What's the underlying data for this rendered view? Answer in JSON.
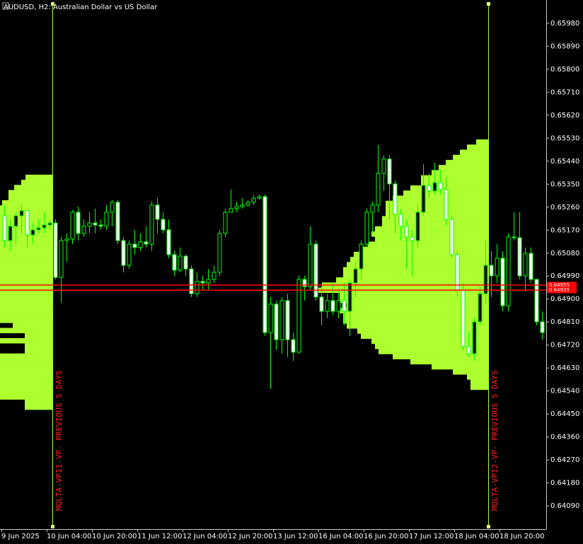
{
  "chart_data": {
    "type": "candlestick",
    "title": "AUDUSD, H2:  Australian Dollar vs US Dollar",
    "open": [
      0.65226,
      0.65129,
      0.65185,
      0.65226,
      0.65246,
      0.65151,
      0.65171,
      0.65179,
      0.6519,
      0.65198,
      0.64985,
      0.65129,
      0.65135,
      0.6524,
      0.65157,
      0.65185,
      0.65198,
      0.6519,
      0.65185,
      0.6524,
      0.65279,
      0.65129,
      0.65032,
      0.65115,
      0.65102,
      0.65124,
      0.65115,
      0.65268,
      0.65212,
      0.65171,
      0.65074,
      0.65013,
      0.65068,
      0.65018,
      0.64921,
      0.64969,
      0.64963,
      0.64977,
      0.65005,
      0.65157,
      0.6524,
      0.65254,
      0.65262,
      0.65268,
      0.65279,
      0.65295,
      0.65301,
      0.64769,
      0.6488,
      0.64741,
      0.64894,
      0.64741,
      0.64692,
      0.64977,
      0.64949,
      0.65115,
      0.64908,
      0.64852,
      0.64894,
      0.64852,
      0.64894,
      0.64852,
      0.64963,
      0.65018,
      0.65115,
      0.6524,
      0.65268,
      0.65392,
      0.65448,
      0.65351,
      0.65232,
      0.65185,
      0.65143,
      0.65129,
      0.6524,
      0.65345,
      0.65323,
      0.65356,
      0.65329,
      0.65212,
      0.65074,
      0.64935,
      0.64714,
      0.64686,
      0.64811,
      0.64921,
      0.65032,
      0.64991,
      0.6506,
      0.64874,
      0.65143,
      0.6514,
      0.64991,
      0.65079,
      0.64977,
      0.64811
    ],
    "high": [
      0.65268,
      0.65212,
      0.6524,
      0.65268,
      0.65251,
      0.65198,
      0.65212,
      0.6524,
      0.65207,
      0.65212,
      0.65143,
      0.65157,
      0.65248,
      0.65262,
      0.65212,
      0.6524,
      0.65254,
      0.65212,
      0.65268,
      0.65287,
      0.65287,
      0.65143,
      0.65129,
      0.65171,
      0.65157,
      0.65185,
      0.65282,
      0.65295,
      0.6524,
      0.65212,
      0.65088,
      0.65102,
      0.65074,
      0.65032,
      0.65005,
      0.64991,
      0.65018,
      0.65032,
      0.65171,
      0.65254,
      0.65329,
      0.65282,
      0.65295,
      0.65287,
      0.65307,
      0.65309,
      0.65309,
      0.64908,
      0.64894,
      0.64908,
      0.64921,
      0.64769,
      0.64991,
      0.64991,
      0.65185,
      0.65129,
      0.64949,
      0.64921,
      0.64963,
      0.64935,
      0.64963,
      0.64977,
      0.65046,
      0.65129,
      0.65254,
      0.65282,
      0.65503,
      0.65462,
      0.65462,
      0.65365,
      0.65254,
      0.65212,
      0.65171,
      0.65268,
      0.65428,
      0.65392,
      0.65434,
      0.65406,
      0.65379,
      0.65226,
      0.65088,
      0.64963,
      0.64769,
      0.64825,
      0.64949,
      0.65129,
      0.65088,
      0.65115,
      0.65088,
      0.65157,
      0.6524,
      0.6524,
      0.65102,
      0.65102,
      0.64977,
      0.64852
    ],
    "low": [
      0.65102,
      0.65088,
      0.65115,
      0.65157,
      0.65102,
      0.65115,
      0.65157,
      0.65157,
      0.65171,
      0.64977,
      0.64885,
      0.65046,
      0.65115,
      0.65129,
      0.65143,
      0.65157,
      0.65157,
      0.65171,
      0.65171,
      0.65185,
      0.65115,
      0.65005,
      0.65018,
      0.65074,
      0.65088,
      0.65102,
      0.65088,
      0.65157,
      0.65157,
      0.6506,
      0.64991,
      0.65005,
      0.64991,
      0.64908,
      0.64908,
      0.64935,
      0.64935,
      0.64963,
      0.64991,
      0.65143,
      0.6524,
      0.6524,
      0.65254,
      0.65262,
      0.65268,
      0.6529,
      0.64755,
      0.64548,
      0.647,
      0.64686,
      0.64672,
      0.64658,
      0.64686,
      0.64894,
      0.64935,
      0.64894,
      0.64797,
      0.64825,
      0.64838,
      0.64825,
      0.64797,
      0.64755,
      0.64908,
      0.64977,
      0.65102,
      0.65157,
      0.6524,
      0.65323,
      0.65212,
      0.65157,
      0.65129,
      0.65018,
      0.64991,
      0.65102,
      0.65226,
      0.65295,
      0.65309,
      0.65309,
      0.65185,
      0.6506,
      0.64908,
      0.647,
      0.64672,
      0.64658,
      0.64797,
      0.6488,
      0.64908,
      0.64963,
      0.64852,
      0.64852,
      0.65129,
      0.64977,
      0.64935,
      0.64963,
      0.64797,
      0.64741
    ],
    "close": [
      0.65129,
      0.65185,
      0.65226,
      0.65246,
      0.65151,
      0.65171,
      0.65179,
      0.6519,
      0.65198,
      0.64985,
      0.65129,
      0.65135,
      0.6524,
      0.65157,
      0.65185,
      0.65198,
      0.6519,
      0.65185,
      0.6524,
      0.65279,
      0.65129,
      0.65032,
      0.65115,
      0.65102,
      0.65124,
      0.65115,
      0.65268,
      0.65212,
      0.65171,
      0.65074,
      0.65013,
      0.65068,
      0.65018,
      0.64921,
      0.64969,
      0.64963,
      0.64977,
      0.65005,
      0.65157,
      0.6524,
      0.65254,
      0.65262,
      0.65268,
      0.65279,
      0.65295,
      0.65301,
      0.64769,
      0.6488,
      0.64741,
      0.64894,
      0.64741,
      0.64692,
      0.64977,
      0.64949,
      0.65115,
      0.64908,
      0.64852,
      0.64894,
      0.64852,
      0.64894,
      0.64852,
      0.64963,
      0.65018,
      0.65115,
      0.6524,
      0.65268,
      0.65392,
      0.65448,
      0.65351,
      0.65232,
      0.65185,
      0.65143,
      0.65129,
      0.6524,
      0.65345,
      0.65323,
      0.65356,
      0.65329,
      0.65212,
      0.65074,
      0.64935,
      0.64714,
      0.64686,
      0.64811,
      0.64921,
      0.65032,
      0.64991,
      0.6506,
      0.64874,
      0.65143,
      0.6514,
      0.64991,
      0.65079,
      0.64977,
      0.64811,
      0.64769
    ],
    "x_labels": [
      "9 Jun 2025",
      "10 Jun 04:00",
      "10 Jun 20:00",
      "11 Jun 12:00",
      "12 Jun 04:00",
      "12 Jun 20:00",
      "13 Jun 12:00",
      "16 Jun 04:00",
      "16 Jun 20:00",
      "17 Jun 12:00",
      "18 Jun 04:00",
      "18 Jun 20:00"
    ],
    "ylim": [
      0.63999,
      0.66071
    ],
    "yticks": [
      {
        "value": 0.6598,
        "label": "0.65980"
      },
      {
        "value": 0.6589,
        "label": "0.65890"
      },
      {
        "value": 0.658,
        "label": "0.65800"
      },
      {
        "value": 0.6571,
        "label": "0.65710"
      },
      {
        "value": 0.6562,
        "label": "0.65620"
      },
      {
        "value": 0.6553,
        "label": "0.65530"
      },
      {
        "value": 0.6544,
        "label": "0.65440"
      },
      {
        "value": 0.6535,
        "label": "0.65350"
      },
      {
        "value": 0.6526,
        "label": "0.65260"
      },
      {
        "value": 0.6517,
        "label": "0.65170"
      },
      {
        "value": 0.6508,
        "label": "0.65080"
      },
      {
        "value": 0.6499,
        "label": "0.64990"
      },
      {
        "value": 0.649,
        "label": "0.64900"
      },
      {
        "value": 0.6481,
        "label": "0.64810"
      },
      {
        "value": 0.6472,
        "label": "0.64720"
      },
      {
        "value": 0.6463,
        "label": "0.64630"
      },
      {
        "value": 0.6454,
        "label": "0.64540"
      },
      {
        "value": 0.6445,
        "label": "0.64450"
      },
      {
        "value": 0.6436,
        "label": "0.64360"
      },
      {
        "value": 0.6427,
        "label": "0.64270"
      },
      {
        "value": 0.6418,
        "label": "0.64180"
      },
      {
        "value": 0.6409,
        "label": "0.64090"
      }
    ],
    "candle_colors": {
      "wick": "#00ff00",
      "bull": "#000000",
      "bear": "#ffffff"
    },
    "price_lines": {
      "color": "#ff0000",
      "values": [
        0.64955,
        0.64935
      ]
    },
    "profiles": [
      {
        "name": "MQLTA-VPI1-VP- PREVIOUS 5 DAYS",
        "color": "#adff2f",
        "prices": [
          0.65387,
          0.65367,
          0.65347,
          0.65327,
          0.65307,
          0.65287,
          0.65267,
          0.65247,
          0.65227,
          0.65207,
          0.65187,
          0.65167,
          0.65147,
          0.65127,
          0.65107,
          0.65087,
          0.65067,
          0.65047,
          0.65027,
          0.65007,
          0.64987,
          0.64967,
          0.64947,
          0.64927,
          0.64907,
          0.64887,
          0.64867,
          0.64847,
          0.64827,
          0.64807,
          0.64787,
          0.64767,
          0.64747,
          0.64727,
          0.64707,
          0.64687,
          0.64667,
          0.64647,
          0.64627,
          0.64607,
          0.64587,
          0.64567,
          0.64547,
          0.64527,
          0.64507,
          0.64487
        ],
        "volumes": [
          38,
          44,
          54,
          62,
          62,
          71,
          80,
          80,
          80,
          80,
          80,
          80,
          80,
          80,
          80,
          80,
          80,
          80,
          80,
          80,
          80,
          80,
          80,
          80,
          80,
          80,
          80,
          80,
          80,
          56,
          80,
          39,
          80,
          39,
          39,
          80,
          80,
          80,
          80,
          80,
          80,
          80,
          80,
          80,
          39,
          39
        ]
      },
      {
        "name": "MQLTA-VPI2-VP- PREVIOUS 5 DAYS",
        "color": "#adff2f",
        "prices": [
          0.65525,
          0.65505,
          0.65485,
          0.65465,
          0.65445,
          0.65425,
          0.65405,
          0.65385,
          0.65365,
          0.65345,
          0.65325,
          0.65305,
          0.65285,
          0.65265,
          0.65245,
          0.65225,
          0.65205,
          0.65185,
          0.65165,
          0.65145,
          0.65125,
          0.65105,
          0.65085,
          0.65065,
          0.65045,
          0.65025,
          0.65005,
          0.64985,
          0.64965,
          0.64945,
          0.64925,
          0.64905,
          0.64885,
          0.64865,
          0.64845,
          0.64825,
          0.64805,
          0.64785,
          0.64765,
          0.64745,
          0.64725,
          0.64705,
          0.64685,
          0.64665,
          0.64645,
          0.64625,
          0.64605,
          0.64585,
          0.64565
        ],
        "volumes": [
          17,
          30,
          40,
          50,
          60,
          70,
          80,
          95,
          95,
          110,
          120,
          135,
          145,
          145,
          145,
          150,
          150,
          160,
          165,
          160,
          170,
          180,
          190,
          195,
          200,
          205,
          205,
          215,
          235,
          240,
          210,
          210,
          200,
          210,
          205,
          205,
          200,
          185,
          180,
          165,
          160,
          155,
          135,
          110,
          80,
          50,
          30,
          25,
          25
        ]
      }
    ]
  }
}
